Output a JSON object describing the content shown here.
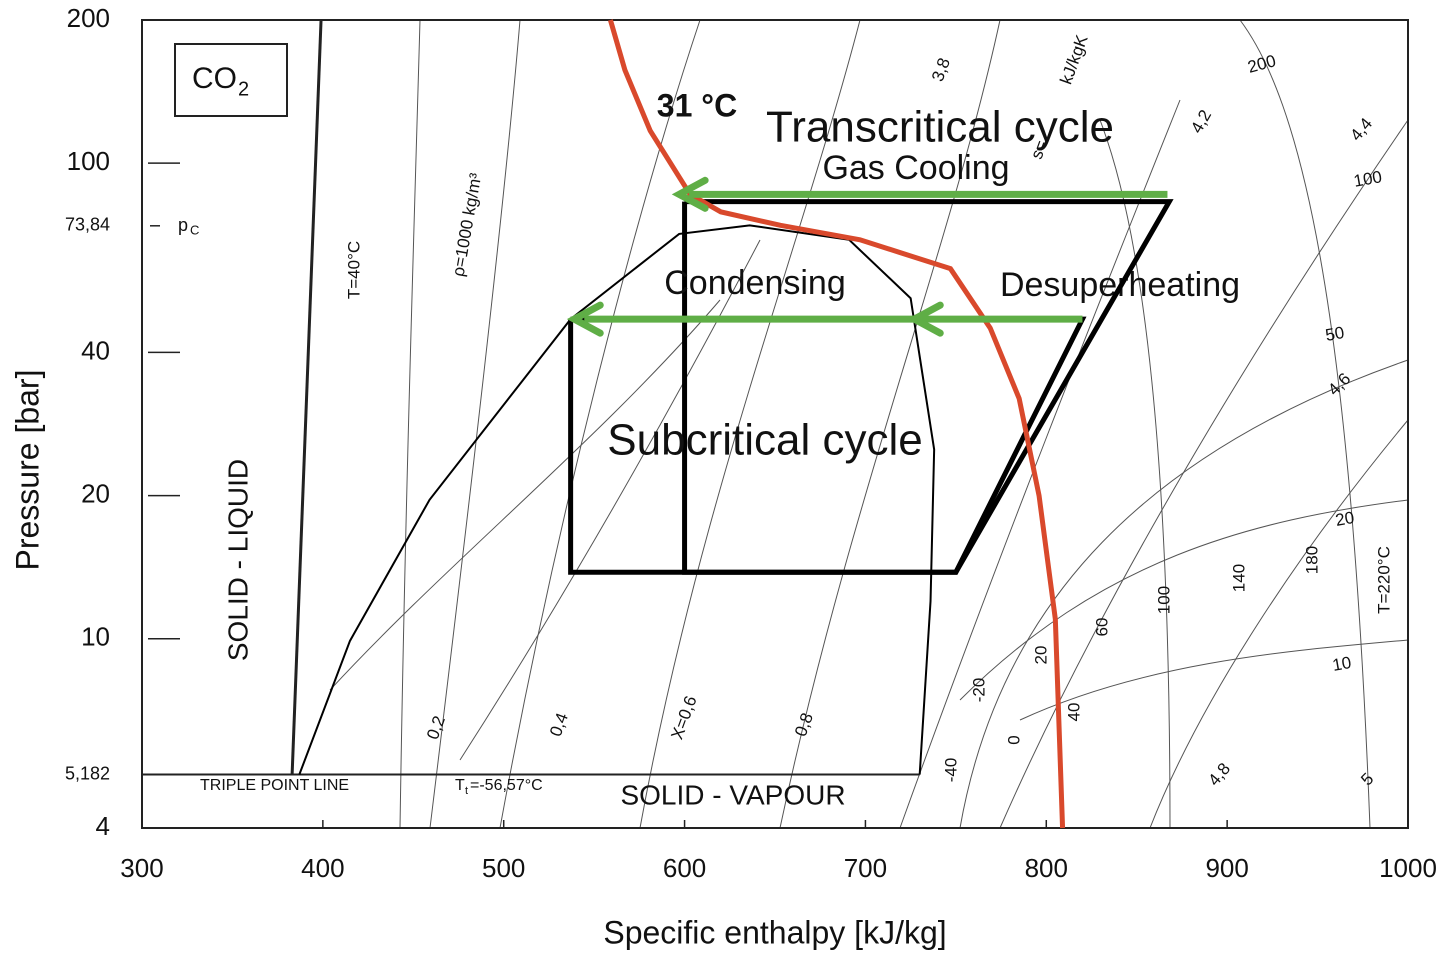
{
  "chart_data": {
    "type": "line",
    "x_label": "Specific enthalpy [kJ/kg]",
    "y_label": "Pressure [bar]",
    "log_y": true,
    "xlim": [
      300,
      1000
    ],
    "ylim": [
      4,
      200
    ],
    "xticks": [
      300,
      400,
      500,
      600,
      700,
      800,
      900,
      1000
    ],
    "yticks": [
      4,
      {
        "value": 5.182,
        "label": "5,182"
      },
      10,
      20,
      40,
      {
        "value": 73.84,
        "label": "73,84"
      },
      100,
      200
    ],
    "substance": {
      "main": "CO",
      "sub": "2"
    },
    "critical_pressure_label": {
      "main": "p",
      "sub": "C"
    },
    "series": [
      {
        "name": "Transcritical cycle",
        "color": "#000000",
        "x": [
          600,
          868,
          750,
          600,
          600
        ],
        "y": [
          83,
          83,
          13.8,
          13.8,
          83
        ]
      },
      {
        "name": "Subcritical cycle",
        "color": "#000000",
        "x": [
          537,
          820,
          750,
          537,
          537
        ],
        "y": [
          47,
          47,
          13.8,
          13.8,
          47
        ]
      },
      {
        "name": "31 °C",
        "color": "#d9492c",
        "x": [
          559,
          567,
          581,
          603,
          620,
          653,
          697,
          747,
          769,
          785,
          796,
          805,
          809
        ],
        "y": [
          200,
          157,
          117,
          86,
          79,
          74,
          69,
          60,
          45,
          32,
          20,
          11,
          4
        ]
      }
    ],
    "saturation_dome": {
      "color": "#000000",
      "x": [
        387,
        415,
        459,
        537,
        597,
        636,
        691,
        725,
        738,
        736,
        730
      ],
      "y": [
        5.182,
        9.9,
        19.6,
        47,
        71,
        74,
        69,
        52,
        25,
        12,
        5.182
      ]
    },
    "melting_line": {
      "x": [
        383,
        399
      ],
      "y": [
        5.182,
        200
      ]
    },
    "triple_point_line": {
      "label": "TRIPLE POINT LINE",
      "x": [
        300,
        730
      ],
      "y": [
        5.182,
        5.182
      ]
    },
    "triple_point_temperature": {
      "main": "T",
      "sub": "t",
      "rest": " =-56,57°C"
    },
    "arrows": [
      {
        "label": "Gas Cooling",
        "from": 867,
        "to": 597,
        "y": 86,
        "heads": [
          597
        ]
      },
      {
        "label": "Condensing",
        "from": 820,
        "to": 539,
        "y": 47,
        "heads": [
          539,
          727
        ]
      }
    ],
    "arrow_color": "#5fae46",
    "label_color": "#c9a043",
    "desuperheating_label": "Desuperheating",
    "regions": [
      "SOLID - LIQUID",
      "SOLID - VAPOUR"
    ],
    "isoline_labels": [
      "T=40°C",
      "ρ=1000 kg/m³",
      "0,2",
      "0,4",
      "X=0,6",
      "0,8",
      "-40",
      "-20",
      "0",
      "20",
      "40",
      "60",
      "100",
      "140",
      "180",
      "T=220°C",
      "3,8",
      "s=",
      "kJ/kgK",
      "4,2",
      "4,4",
      "4,6",
      "4,8",
      "5",
      "200",
      "100",
      "50",
      "20",
      "10"
    ]
  }
}
